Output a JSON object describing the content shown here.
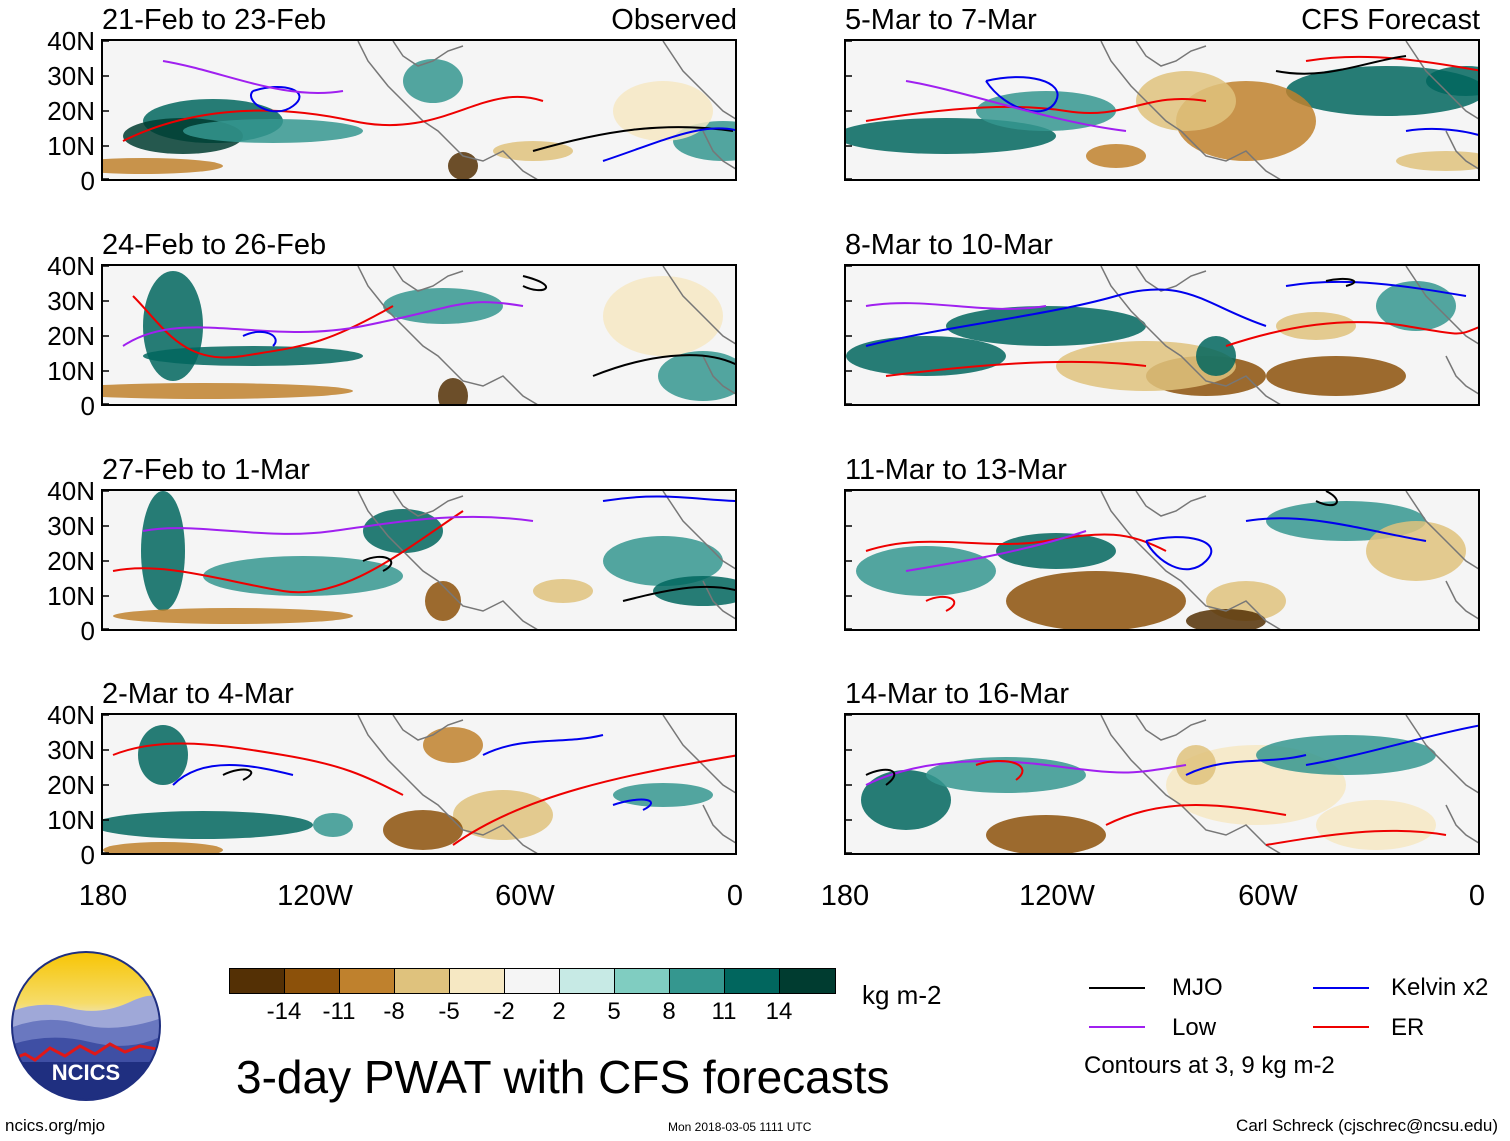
{
  "figure_title": "3-day PWAT with CFS forecasts",
  "panels": [
    {
      "title": "21-Feb to 23-Feb",
      "tag": "Observed"
    },
    {
      "title": "24-Feb to 26-Feb",
      "tag": ""
    },
    {
      "title": "27-Feb to 1-Mar",
      "tag": ""
    },
    {
      "title": "2-Mar to 4-Mar",
      "tag": ""
    },
    {
      "title": "5-Mar to 7-Mar",
      "tag": "CFS Forecast"
    },
    {
      "title": "8-Mar to 10-Mar",
      "tag": ""
    },
    {
      "title": "11-Mar to 13-Mar",
      "tag": ""
    },
    {
      "title": "14-Mar to 16-Mar",
      "tag": ""
    }
  ],
  "lat_ticks": [
    "40N",
    "30N",
    "20N",
    "10N",
    "0"
  ],
  "lon_ticks": [
    "180",
    "120W",
    "60W",
    "0"
  ],
  "colorbar": {
    "units": "kg m-2",
    "labels": [
      "-14",
      "-11",
      "-8",
      "-5",
      "-2",
      "2",
      "5",
      "8",
      "11",
      "14"
    ],
    "colors": [
      "#543005",
      "#8c510a",
      "#bf812d",
      "#dfc27d",
      "#f6e8c3",
      "#f5f5f5",
      "#c7eae5",
      "#80cdc1",
      "#35978f",
      "#01665e",
      "#003c30"
    ]
  },
  "legend": {
    "items": [
      {
        "label": "MJO",
        "color": "#000000"
      },
      {
        "label": "Kelvin x2",
        "color": "#0000ee"
      },
      {
        "label": "Low",
        "color": "#a020f0"
      },
      {
        "label": "ER",
        "color": "#ee0000"
      }
    ],
    "note": "Contours at 3, 9 kg m-2"
  },
  "logo": {
    "text": "NCICS"
  },
  "footer": {
    "left": "ncics.org/mjo",
    "center": "Mon 2018-03-05 1111 UTC",
    "right": "Carl Schreck (cjschrec@ncsu.edu)"
  }
}
